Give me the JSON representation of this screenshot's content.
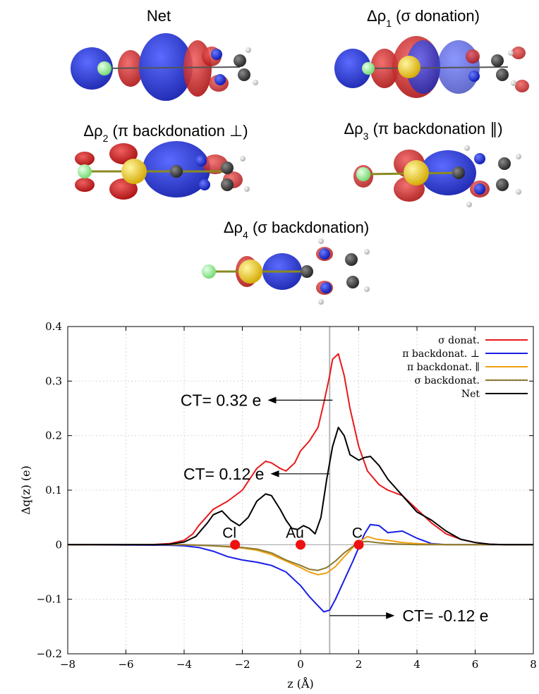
{
  "panels": [
    {
      "label_main": "Net",
      "label_sub": "",
      "label_rest": ""
    },
    {
      "label_main": "Δρ",
      "label_sub": "1",
      "label_rest": " (σ donation)"
    },
    {
      "label_main": "Δρ",
      "label_sub": "2",
      "label_rest": " (π backdonation ⊥)"
    },
    {
      "label_main": "Δρ",
      "label_sub": "3",
      "label_rest": " (π backdonation ∥)"
    },
    {
      "label_main": "Δρ",
      "label_sub": "4",
      "label_rest": " (σ backdonation)"
    }
  ],
  "colors": {
    "isosurface_positive": "#d22020",
    "isosurface_negative": "#2f3fd0",
    "atom_cl": "#9ff59f",
    "atom_au": "#f5d020",
    "atom_c": "#444444",
    "atom_n": "#1a2fe0",
    "atom_h": "#ffffff"
  },
  "chart_data": {
    "type": "line",
    "xlabel": "z (Å)",
    "ylabel": "Δq(z) (e)",
    "xlim": [
      -8,
      8
    ],
    "ylim": [
      -0.2,
      0.4
    ],
    "xticks": [
      -8,
      -6,
      -4,
      -2,
      0,
      2,
      4,
      6,
      8
    ],
    "yticks": [
      -0.2,
      -0.1,
      0,
      0.1,
      0.2,
      0.3,
      0.4
    ],
    "ytick_labels": [
      "−0.2",
      "−0.1",
      "0",
      "0.1",
      "0.2",
      "0.3",
      "0.4"
    ],
    "xtick_labels": [
      "−8",
      "−6",
      "−4",
      "−2",
      "0",
      "2",
      "4",
      "6",
      "8"
    ],
    "grid": true,
    "legend_position": "top-right",
    "vertical_line_x": 1.0,
    "series": [
      {
        "name": "σ donat.",
        "color": "#e8191c",
        "x": [
          -8,
          -5,
          -4.5,
          -4,
          -3.7,
          -3.5,
          -3,
          -2.5,
          -2,
          -1.5,
          -1.2,
          -1,
          -0.7,
          -0.5,
          -0.2,
          0,
          0.3,
          0.6,
          0.8,
          1.0,
          1.1,
          1.3,
          1.5,
          1.7,
          2.0,
          2.3,
          2.7,
          3,
          3.5,
          4,
          4.5,
          5,
          5.5,
          6,
          6.5,
          7,
          8
        ],
        "y": [
          0,
          0.0005,
          0.002,
          0.008,
          0.02,
          0.035,
          0.065,
          0.08,
          0.1,
          0.14,
          0.153,
          0.15,
          0.14,
          0.135,
          0.15,
          0.172,
          0.19,
          0.215,
          0.26,
          0.31,
          0.34,
          0.35,
          0.31,
          0.25,
          0.18,
          0.135,
          0.11,
          0.1,
          0.09,
          0.065,
          0.04,
          0.02,
          0.01,
          0.004,
          0.001,
          0,
          0
        ]
      },
      {
        "name": "π backdonat. ⊥",
        "color": "#1a1fe8",
        "x": [
          -8,
          -4.5,
          -4,
          -3.5,
          -3,
          -2.5,
          -2,
          -1.5,
          -1,
          -0.5,
          0,
          0.3,
          0.6,
          0.8,
          1.0,
          1.2,
          1.5,
          1.8,
          2.0,
          2.2,
          2.4,
          2.7,
          3,
          3.5,
          4,
          4.5,
          5,
          6,
          8
        ],
        "y": [
          0,
          -0.001,
          -0.002,
          -0.005,
          -0.012,
          -0.022,
          -0.028,
          -0.032,
          -0.038,
          -0.05,
          -0.075,
          -0.095,
          -0.112,
          -0.123,
          -0.12,
          -0.1,
          -0.065,
          -0.03,
          -0.005,
          0.02,
          0.037,
          0.035,
          0.022,
          0.025,
          0.012,
          0.002,
          0,
          0,
          0
        ]
      },
      {
        "name": "π backdonat. ∥",
        "color": "#f0a010",
        "x": [
          -8,
          -4,
          -3.5,
          -3,
          -2.5,
          -2,
          -1.5,
          -1,
          -0.5,
          0,
          0.3,
          0.6,
          0.9,
          1.2,
          1.5,
          1.8,
          2.0,
          2.3,
          2.6,
          3,
          3.5,
          4,
          4.5,
          5,
          6,
          8
        ],
        "y": [
          0,
          0,
          -0.001,
          -0.002,
          -0.004,
          -0.006,
          -0.01,
          -0.018,
          -0.03,
          -0.042,
          -0.05,
          -0.055,
          -0.052,
          -0.04,
          -0.022,
          -0.005,
          0.005,
          0.015,
          0.01,
          0.008,
          0.004,
          0.002,
          0.001,
          0,
          0,
          0
        ]
      },
      {
        "name": "σ backdonat.",
        "color": "#8c7a30",
        "x": [
          -8,
          -4,
          -3.5,
          -3,
          -2.5,
          -2,
          -1.5,
          -1,
          -0.5,
          0,
          0.3,
          0.6,
          0.9,
          1.2,
          1.5,
          1.8,
          2.0,
          2.3,
          2.6,
          3,
          3.5,
          4,
          5,
          8
        ],
        "y": [
          0,
          0,
          -0.001,
          -0.002,
          -0.003,
          -0.005,
          -0.008,
          -0.015,
          -0.028,
          -0.038,
          -0.045,
          -0.047,
          -0.042,
          -0.03,
          -0.015,
          -0.003,
          0.005,
          0.006,
          0.004,
          0.002,
          0.001,
          0,
          0,
          0
        ]
      },
      {
        "name": "Net",
        "color": "#000000",
        "x": [
          -8,
          -5,
          -4.5,
          -4,
          -3.6,
          -3.2,
          -3,
          -2.7,
          -2.4,
          -2.1,
          -1.8,
          -1.5,
          -1.2,
          -1.0,
          -0.7,
          -0.5,
          -0.3,
          -0.1,
          0.1,
          0.3,
          0.5,
          0.7,
          0.9,
          1.1,
          1.3,
          1.5,
          1.7,
          2.0,
          2.2,
          2.4,
          2.7,
          3,
          3.5,
          4,
          4.5,
          5,
          5.5,
          6,
          6.5,
          7,
          8
        ],
        "y": [
          0,
          0,
          0.001,
          0.005,
          0.015,
          0.04,
          0.055,
          0.062,
          0.045,
          0.035,
          0.05,
          0.08,
          0.093,
          0.09,
          0.065,
          0.045,
          0.03,
          0.028,
          0.035,
          0.03,
          0.02,
          0.05,
          0.12,
          0.18,
          0.215,
          0.2,
          0.165,
          0.155,
          0.16,
          0.162,
          0.145,
          0.12,
          0.09,
          0.06,
          0.045,
          0.025,
          0.01,
          0.004,
          0.001,
          0,
          0
        ]
      }
    ],
    "annotations": [
      {
        "text": "CT= 0.32 e",
        "arrow_from_x": 1.1,
        "arrow_y": 0.265
      },
      {
        "text": "CT= 0.12 e",
        "arrow_from_x": 1.0,
        "arrow_y": 0.13
      },
      {
        "text": "CT= -0.12 e",
        "arrow_from_x": 1.0,
        "arrow_y": -0.13
      }
    ],
    "atom_markers": [
      {
        "label": "Cl",
        "x": -2.25,
        "y": 0
      },
      {
        "label": "Au",
        "x": 0,
        "y": 0
      },
      {
        "label": "C",
        "x": 2.0,
        "y": 0
      }
    ]
  }
}
